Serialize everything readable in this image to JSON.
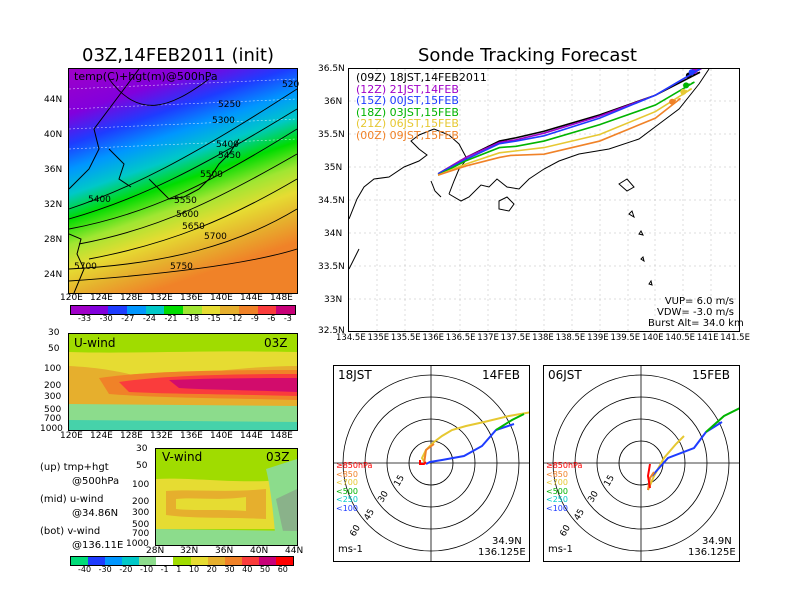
{
  "left_title": "03Z,14FEB2011 (init)",
  "right_title": "Sonde Tracking Forecast",
  "map500": {
    "label": "temp(C)+hgt(m)@500hPa",
    "lat_ticks": [
      "44N",
      "40N",
      "36N",
      "32N",
      "28N",
      "24N"
    ],
    "lon_ticks": [
      "120E",
      "124E",
      "128E",
      "132E",
      "136E",
      "140E",
      "144E",
      "148E"
    ],
    "contour_labels": [
      "520",
      "5250",
      "5300",
      "5400",
      "5450",
      "5500",
      "5400",
      "5550",
      "5600",
      "5650",
      "5700",
      "5700",
      "5750"
    ]
  },
  "temp_colorbar": {
    "ticks": [
      "-33",
      "-30",
      "-27",
      "-24",
      "-21",
      "-18",
      "-15",
      "-12",
      "-9",
      "-6",
      "-3"
    ],
    "colors": [
      "#a000c8",
      "#8200dc",
      "#1e3cff",
      "#0096ff",
      "#00c8c8",
      "#00dc00",
      "#a0e632",
      "#e6dc32",
      "#e6af2d",
      "#f08228",
      "#fa3c3c",
      "#c80078"
    ]
  },
  "uwind": {
    "label": "U-wind",
    "time": "03Z",
    "p_ticks": [
      "30",
      "50",
      "100",
      "200",
      "300",
      "500",
      "700",
      "1000"
    ],
    "lon_ticks": [
      "120E",
      "124E",
      "128E",
      "132E",
      "136E",
      "140E",
      "144E",
      "148E"
    ]
  },
  "vwind": {
    "label": "V-wind",
    "time": "03Z",
    "p_ticks": [
      "30",
      "50",
      "100",
      "200",
      "300",
      "500",
      "700",
      "1000"
    ],
    "lat_ticks": [
      "28N",
      "32N",
      "36N",
      "40N",
      "44N"
    ]
  },
  "notes": {
    "up1": "(up) tmp+hgt",
    "up2": "@500hPa",
    "mid1": "(mid) u-wind",
    "mid2": "@34.86N",
    "bot1": "(bot) v-wind",
    "bot2": "@136.11E"
  },
  "wind_colorbar": {
    "ticks": [
      "-40",
      "-30",
      "-20",
      "-10",
      "-1",
      "1",
      "10",
      "20",
      "30",
      "40",
      "50",
      "60"
    ],
    "colors": [
      "#00dc78",
      "#1e3cff",
      "#0096ff",
      "#00c8c8",
      "#8cdc8c",
      "#ffffff",
      "#a0dc00",
      "#e6dc32",
      "#e6af2d",
      "#f08228",
      "#fa3c3c",
      "#c80078",
      "#ff0000"
    ]
  },
  "track_map": {
    "lat_ticks": [
      "36.5N",
      "36N",
      "35.5N",
      "35N",
      "34.5N",
      "34N",
      "33.5N",
      "33N",
      "32.5N"
    ],
    "lon_ticks": [
      "134.5E",
      "135E",
      "135.5E",
      "136E",
      "136.5E",
      "137E",
      "137.5E",
      "138E",
      "138.5E",
      "139E",
      "139.5E",
      "140E",
      "140.5E",
      "141E",
      "141.5E"
    ],
    "legend": [
      {
        "code": "(09Z)",
        "text": "18JST,14FEB2011",
        "color": "#000000"
      },
      {
        "code": "(12Z)",
        "text": "21JST,14FEB",
        "color": "#a000c8"
      },
      {
        "code": "(15Z)",
        "text": "00JST,15FEB",
        "color": "#1e3cff"
      },
      {
        "code": "(18Z)",
        "text": "03JST,15FEB",
        "color": "#00b400"
      },
      {
        "code": "(21Z)",
        "text": "06JST,15FEB",
        "color": "#e6c832"
      },
      {
        "code": "(00Z)",
        "text": "09JST,15FEB",
        "color": "#f08228"
      }
    ],
    "params": [
      "VUP= 6.0 m/s",
      "VDW= -3.0 m/s",
      "Burst Alt= 34.0 km"
    ]
  },
  "polar": [
    {
      "time": "18JST",
      "date": "14FEB",
      "loc1": "34.9N",
      "loc2": "136.125E",
      "unit": "ms-1",
      "rings": [
        "15",
        "30",
        "45",
        "60"
      ]
    },
    {
      "time": "06JST",
      "date": "15FEB",
      "loc1": "34.9N",
      "loc2": "136.125E",
      "unit": "ms-1",
      "rings": [
        "15",
        "30",
        "45",
        "60"
      ]
    }
  ],
  "polar_legend": [
    {
      "text": "≥850hPa",
      "color": "#ff0000"
    },
    {
      "text": "<850",
      "color": "#f08228"
    },
    {
      "text": "<700",
      "color": "#e6c832"
    },
    {
      "text": "<500",
      "color": "#00b400"
    },
    {
      "text": "<250",
      "color": "#00c8c8"
    },
    {
      "text": "<100",
      "color": "#1e3cff"
    }
  ],
  "chart_data": {
    "type": "line",
    "title": "Sonde Tracking Forecast",
    "x_range": [
      134.5,
      141.5
    ],
    "y_range": [
      32.5,
      36.5
    ],
    "launch": {
      "lon": 136.125,
      "lat": 34.9
    },
    "series": [
      {
        "name": "(09Z) 18JST,14FEB2011",
        "color": "#000000",
        "ascent": [
          [
            136.1,
            34.9
          ],
          [
            136.6,
            35.15
          ],
          [
            137.2,
            35.4
          ],
          [
            137.5,
            35.45
          ],
          [
            138.0,
            35.55
          ],
          [
            139.0,
            35.8
          ],
          [
            140.0,
            36.1
          ],
          [
            140.8,
            36.45
          ]
        ],
        "descent": [
          [
            140.8,
            36.45
          ],
          [
            140.6,
            36.4
          ]
        ],
        "landing": [
          140.6,
          36.4
        ]
      },
      {
        "name": "(12Z) 21JST,14FEB",
        "color": "#a000c8",
        "ascent": [
          [
            136.1,
            34.9
          ],
          [
            136.6,
            35.15
          ],
          [
            137.2,
            35.38
          ],
          [
            137.5,
            35.42
          ],
          [
            138.0,
            35.52
          ],
          [
            139.0,
            35.78
          ],
          [
            140.0,
            36.1
          ],
          [
            140.85,
            36.52
          ]
        ],
        "descent": [
          [
            140.85,
            36.52
          ],
          [
            140.7,
            36.47
          ]
        ],
        "landing": [
          140.7,
          36.47
        ]
      },
      {
        "name": "(15Z) 00JST,15FEB",
        "color": "#1e3cff",
        "ascent": [
          [
            136.1,
            34.9
          ],
          [
            136.6,
            35.12
          ],
          [
            137.2,
            35.36
          ],
          [
            137.5,
            35.4
          ],
          [
            138.0,
            35.48
          ],
          [
            139.0,
            35.75
          ],
          [
            140.0,
            36.1
          ],
          [
            140.8,
            36.5
          ]
        ],
        "descent": [
          [
            140.8,
            36.5
          ],
          [
            140.65,
            36.45
          ]
        ],
        "landing": [
          140.65,
          36.45
        ]
      },
      {
        "name": "(18Z) 03JST,15FEB",
        "color": "#00b400",
        "ascent": [
          [
            136.1,
            34.88
          ],
          [
            136.6,
            35.1
          ],
          [
            137.2,
            35.3
          ],
          [
            137.5,
            35.32
          ],
          [
            138.0,
            35.4
          ],
          [
            139.0,
            35.65
          ],
          [
            140.0,
            35.95
          ],
          [
            140.7,
            36.3
          ]
        ],
        "descent": [
          [
            140.7,
            36.3
          ],
          [
            140.55,
            36.25
          ]
        ],
        "landing": [
          140.55,
          36.25
        ]
      },
      {
        "name": "(21Z) 06JST,15FEB",
        "color": "#e6c832",
        "ascent": [
          [
            136.1,
            34.88
          ],
          [
            136.6,
            35.05
          ],
          [
            137.2,
            35.22
          ],
          [
            137.5,
            35.25
          ],
          [
            138.0,
            35.3
          ],
          [
            139.0,
            35.5
          ],
          [
            140.0,
            35.85
          ],
          [
            140.65,
            36.2
          ]
        ],
        "descent": [
          [
            140.65,
            36.2
          ],
          [
            140.5,
            36.15
          ]
        ],
        "landing": [
          140.5,
          36.15
        ]
      },
      {
        "name": "(00Z) 09JST,15FEB",
        "color": "#f08228",
        "ascent": [
          [
            136.1,
            34.88
          ],
          [
            136.6,
            35.02
          ],
          [
            137.2,
            35.15
          ],
          [
            137.4,
            35.18
          ],
          [
            138.0,
            35.2
          ],
          [
            139.0,
            35.4
          ],
          [
            140.0,
            35.75
          ],
          [
            140.45,
            36.05
          ]
        ],
        "descent": [
          [
            140.45,
            36.05
          ],
          [
            140.3,
            36.0
          ]
        ],
        "landing": [
          140.3,
          36.0
        ]
      }
    ]
  }
}
